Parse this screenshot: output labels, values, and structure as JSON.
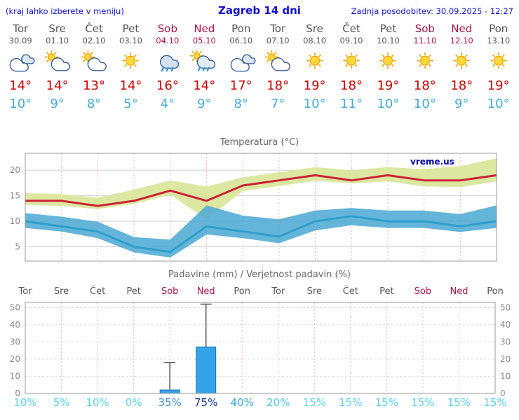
{
  "header": {
    "hint": "(kraj lahko izberete v meniju)",
    "title": "Zagreb 14 dni",
    "updated": "Zadnja posodobitev: 30.09.2025 - 12:27"
  },
  "days": [
    {
      "name": "Tor",
      "date": "30.09",
      "weekend": false,
      "icon": "cloudy",
      "high": "14°",
      "low": "10°"
    },
    {
      "name": "Sre",
      "date": "01.10",
      "weekend": false,
      "icon": "partly",
      "high": "14°",
      "low": "9°"
    },
    {
      "name": "Čet",
      "date": "02.10",
      "weekend": false,
      "icon": "partly",
      "high": "13°",
      "low": "8°"
    },
    {
      "name": "Pet",
      "date": "03.10",
      "weekend": false,
      "icon": "sunny",
      "high": "14°",
      "low": "5°"
    },
    {
      "name": "Sob",
      "date": "04.10",
      "weekend": true,
      "icon": "rain",
      "high": "16°",
      "low": "4°"
    },
    {
      "name": "Ned",
      "date": "05.10",
      "weekend": true,
      "icon": "showers",
      "high": "14°",
      "low": "9°"
    },
    {
      "name": "Pon",
      "date": "06.10",
      "weekend": false,
      "icon": "cloudy",
      "high": "17°",
      "low": "8°"
    },
    {
      "name": "Tor",
      "date": "07.10",
      "weekend": false,
      "icon": "partly",
      "high": "18°",
      "low": "7°"
    },
    {
      "name": "Sre",
      "date": "08.10",
      "weekend": false,
      "icon": "sunny",
      "high": "19°",
      "low": "10°"
    },
    {
      "name": "Čet",
      "date": "09.10",
      "weekend": false,
      "icon": "sunny",
      "high": "18°",
      "low": "11°"
    },
    {
      "name": "Pet",
      "date": "10.10",
      "weekend": false,
      "icon": "sunny",
      "high": "19°",
      "low": "10°"
    },
    {
      "name": "Sob",
      "date": "11.10",
      "weekend": true,
      "icon": "sunny",
      "high": "18°",
      "low": "10°"
    },
    {
      "name": "Ned",
      "date": "12.10",
      "weekend": true,
      "icon": "sunny",
      "high": "18°",
      "low": "9°"
    },
    {
      "name": "Pon",
      "date": "13.10",
      "weekend": false,
      "icon": "sunny",
      "high": "19°",
      "low": "10°"
    }
  ],
  "chart_data": [
    {
      "type": "line",
      "title": "Temperatura (°C)",
      "watermark": "vreme.us",
      "x_labels": [
        "Tor",
        "Sre",
        "Čet",
        "Pet",
        "Sob",
        "Ned",
        "Pon",
        "Tor",
        "Sre",
        "Čet",
        "Pet",
        "Sob",
        "Ned",
        "Pon"
      ],
      "ylim": [
        2.2,
        23.3
      ],
      "yticks": [
        5,
        10,
        15,
        20
      ],
      "series": [
        {
          "name": "max-temp",
          "color": "#cc2233",
          "values": [
            14,
            14,
            13,
            14,
            16,
            14,
            17,
            18,
            19,
            18,
            19,
            18,
            18,
            19
          ]
        },
        {
          "name": "min-temp",
          "color": "#2f9ecc",
          "values": [
            10,
            9,
            8,
            5,
            4,
            9,
            8,
            7,
            10,
            11,
            10,
            10,
            9,
            10
          ]
        }
      ],
      "bands": [
        {
          "name": "max-range",
          "color": "#dce8a2",
          "opacity": 1,
          "upper": [
            15.5,
            15.3,
            14.6,
            16.2,
            18,
            16.8,
            18.6,
            19.6,
            20.6,
            20,
            20.6,
            20.2,
            20.8,
            22.3
          ],
          "lower": [
            13.2,
            13,
            12.4,
            13.4,
            15.2,
            10.4,
            15.9,
            16.9,
            17.9,
            17.4,
            17.8,
            16.8,
            16.7,
            17.8
          ]
        },
        {
          "name": "min-range",
          "color": "#4aa8d4",
          "opacity": 0.85,
          "upper": [
            11.6,
            10.9,
            9.9,
            6.9,
            6.4,
            13.1,
            11.1,
            10.4,
            12.1,
            12.6,
            12.1,
            12.1,
            11.4,
            13.1
          ],
          "lower": [
            8.7,
            8,
            6.7,
            3.9,
            2.9,
            7.4,
            6.7,
            5.7,
            8.2,
            9.2,
            8.7,
            8.7,
            7.9,
            8.7
          ]
        }
      ]
    },
    {
      "type": "bar",
      "title": "Padavine (mm) / Verjetnost padavin (%)",
      "categories": [
        "Tor",
        "Sre",
        "Čet",
        "Pet",
        "Sob",
        "Ned",
        "Pon",
        "Tor",
        "Sre",
        "Čet",
        "Pet",
        "Sob",
        "Ned",
        "Pon"
      ],
      "weekend": [
        false,
        false,
        false,
        false,
        true,
        true,
        false,
        false,
        false,
        false,
        false,
        true,
        true,
        false
      ],
      "precip_mm": [
        0,
        0,
        0,
        0,
        2,
        27,
        0,
        0,
        0,
        0,
        0,
        0,
        0,
        0
      ],
      "precip_max_mm": [
        0,
        0,
        0,
        0,
        18,
        52,
        0,
        0,
        0,
        0,
        0,
        0,
        0,
        0
      ],
      "bar_color": "#35a3e8",
      "bar_border": "#1a6fb5",
      "ylim": [
        0,
        53
      ],
      "yticks": [
        0,
        10,
        20,
        30,
        40,
        50
      ],
      "probabilities": [
        {
          "label": "10%",
          "color": "#5ad2f0"
        },
        {
          "label": "5%",
          "color": "#5ad2f0"
        },
        {
          "label": "10%",
          "color": "#5ad2f0"
        },
        {
          "label": "0%",
          "color": "#5ad2f0"
        },
        {
          "label": "35%",
          "color": "#4090c8"
        },
        {
          "label": "75%",
          "color": "#1535a8"
        },
        {
          "label": "40%",
          "color": "#38a8dc"
        },
        {
          "label": "20%",
          "color": "#52c8ec"
        },
        {
          "label": "15%",
          "color": "#5ad2f0"
        },
        {
          "label": "15%",
          "color": "#5ad2f0"
        },
        {
          "label": "15%",
          "color": "#5ad2f0"
        },
        {
          "label": "15%",
          "color": "#5ad2f0"
        },
        {
          "label": "15%",
          "color": "#5ad2f0"
        },
        {
          "label": "15%",
          "color": "#5ad2f0"
        }
      ]
    }
  ]
}
